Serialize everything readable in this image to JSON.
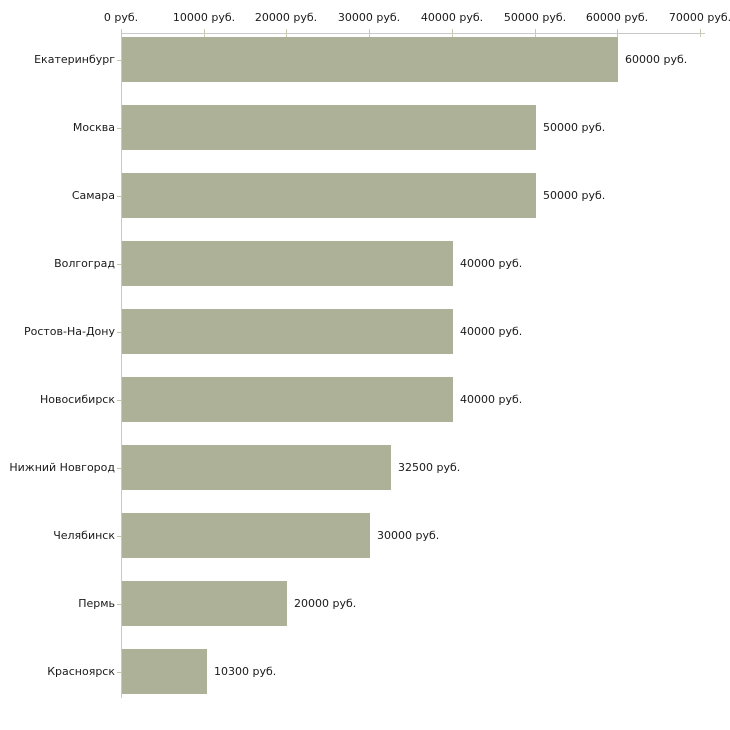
{
  "chart_data": {
    "type": "bar",
    "orientation": "horizontal",
    "title": "",
    "unit": "руб.",
    "grid": false,
    "legend": false,
    "categories": [
      "Екатеринбург",
      "Москва",
      "Самара",
      "Волгоград",
      "Ростов-На-Дону",
      "Новосибирск",
      "Нижний Новгород",
      "Челябинск",
      "Пермь",
      "Красноярск"
    ],
    "values": [
      60000,
      50000,
      50000,
      40000,
      40000,
      40000,
      32500,
      30000,
      20000,
      10300
    ],
    "bar_labels": [
      "60000 руб.",
      "50000 руб.",
      "50000 руб.",
      "40000 руб.",
      "40000 руб.",
      "40000 руб.",
      "32500 руб.",
      "30000 руб.",
      "20000 руб.",
      "10300 руб."
    ],
    "x_axis": {
      "position": "top",
      "min": 0,
      "max": 70000,
      "tick_interval": 10000,
      "tick_labels": [
        "0 руб.",
        "10000 руб.",
        "20000 руб.",
        "30000 руб.",
        "40000 руб.",
        "50000 руб.",
        "60000 руб.",
        "70000 руб."
      ]
    }
  },
  "colors": {
    "background": "#ffffff",
    "bar_fill": "#acb197",
    "axis_line": "#c9c9c9",
    "x_tick": "#c9cbb0",
    "category_tick": "#c3c5ad",
    "text": "#1a1a1a"
  }
}
